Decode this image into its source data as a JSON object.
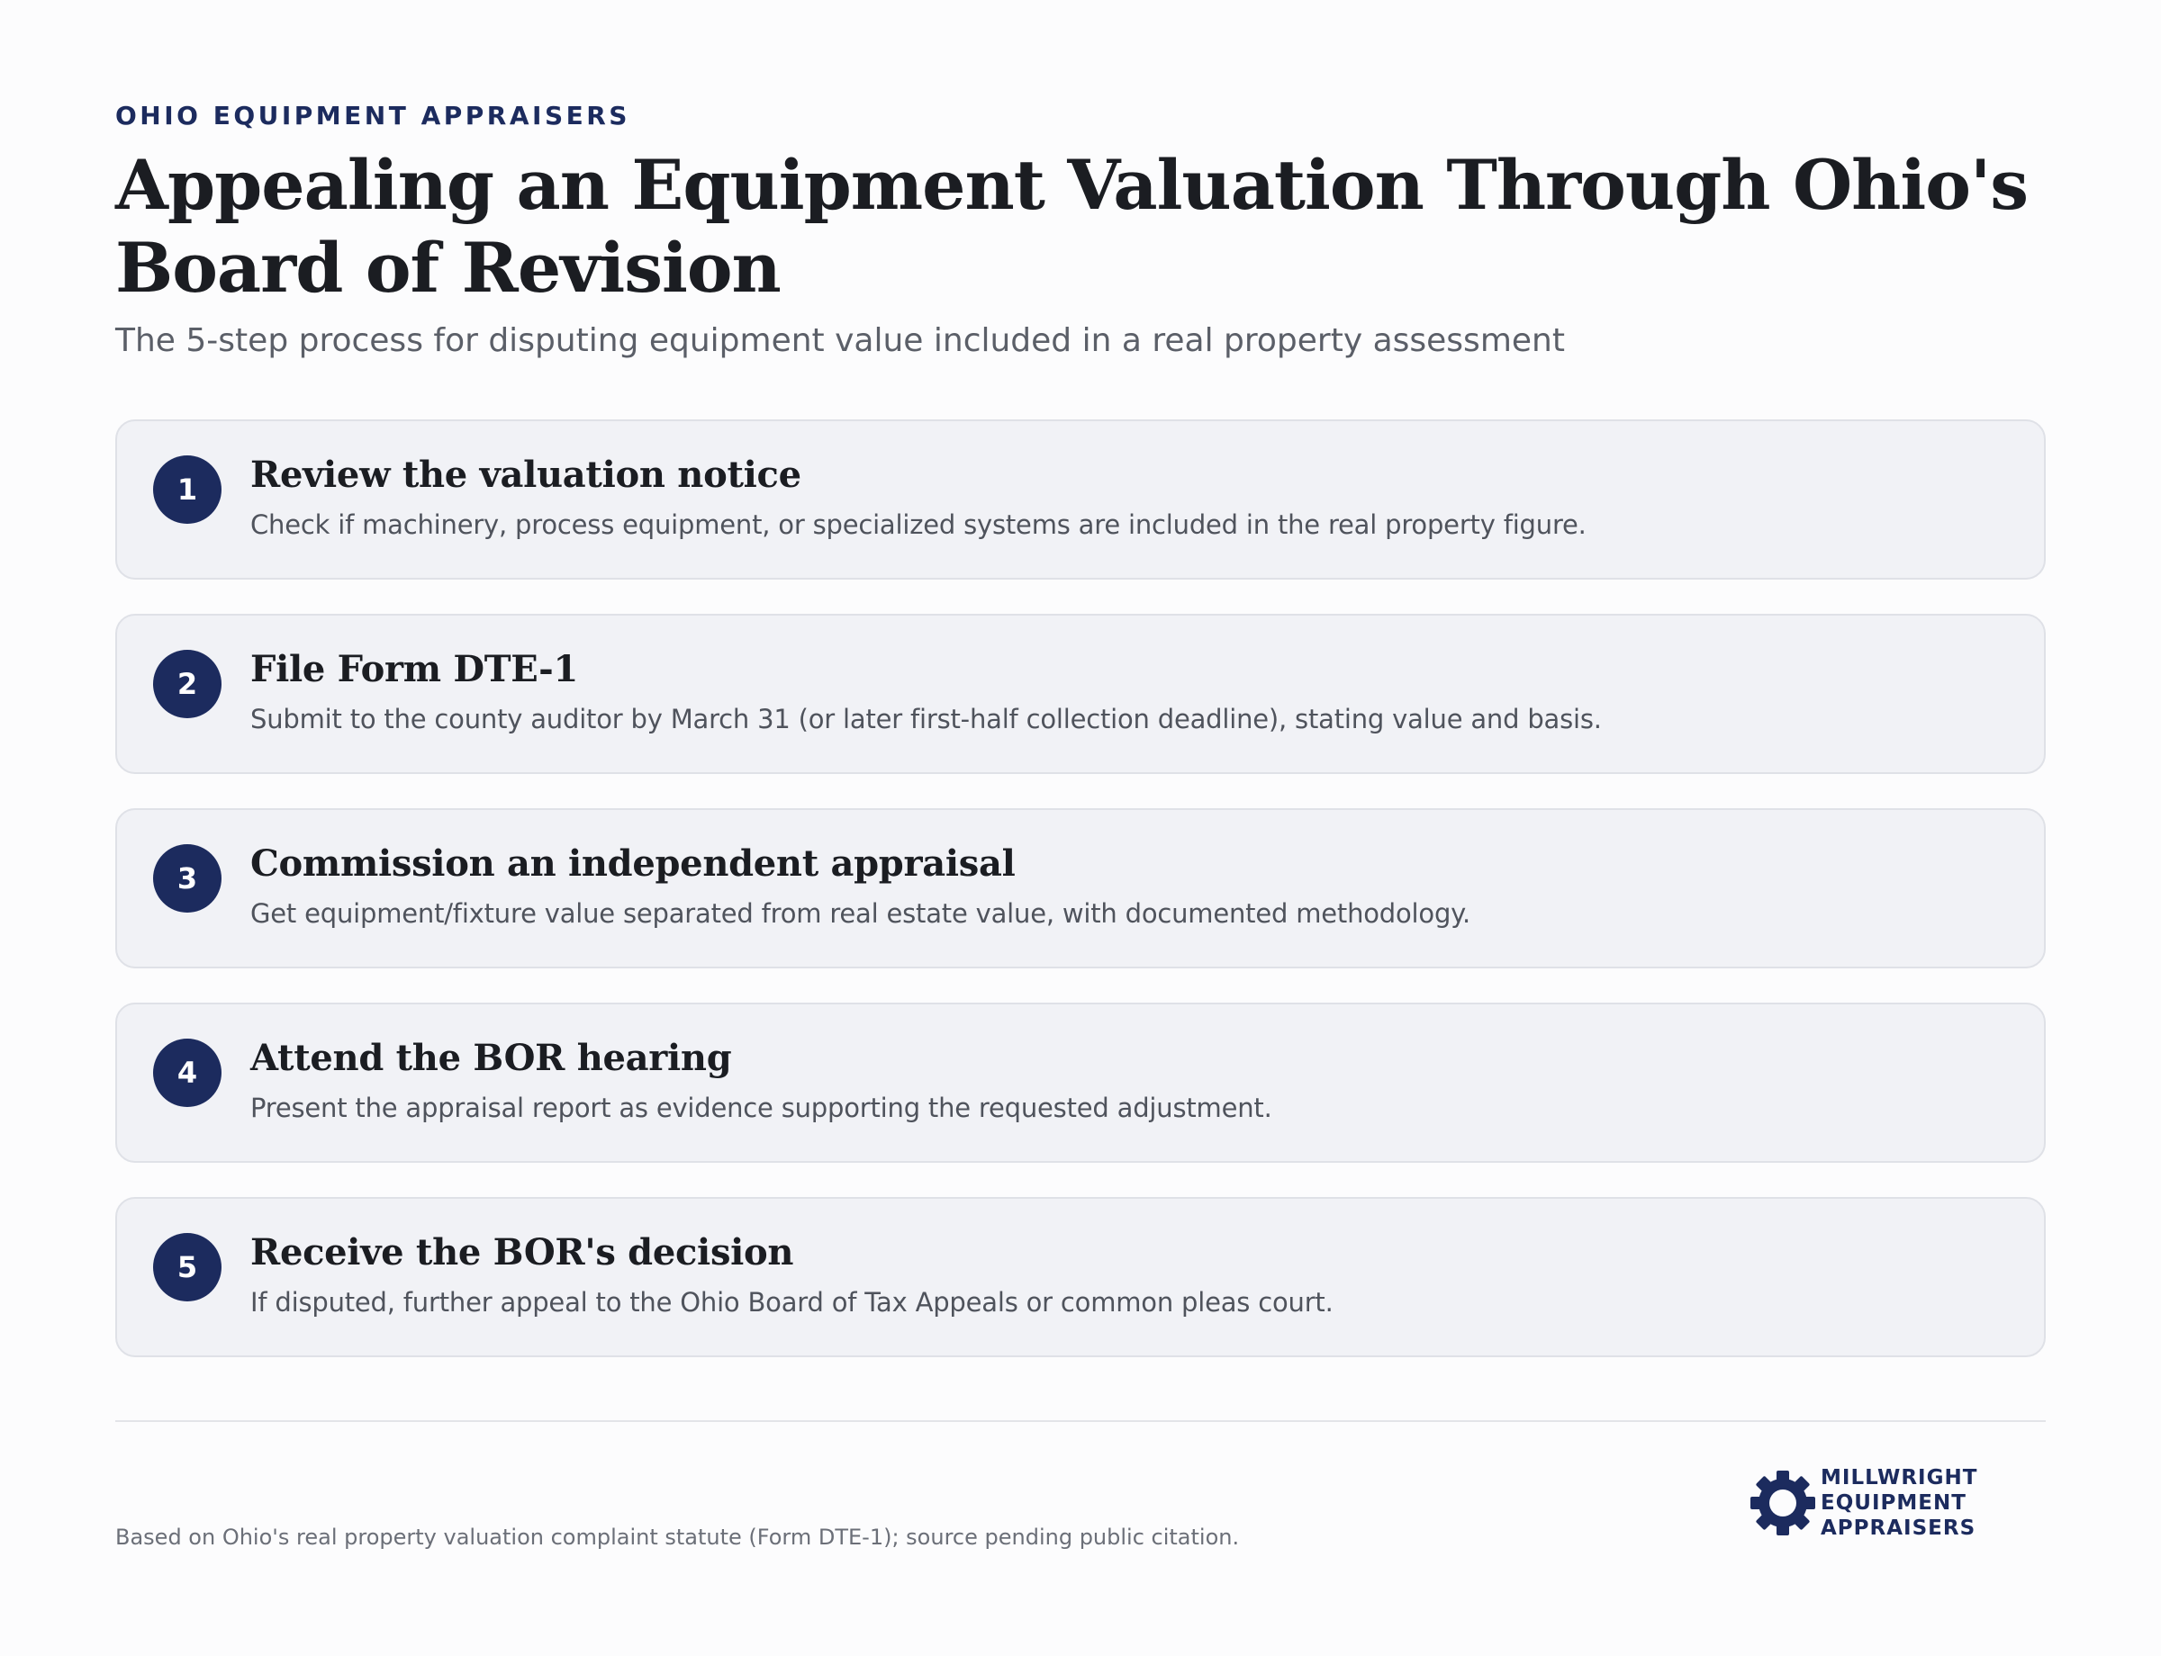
{
  "header": {
    "eyebrow": "OHIO EQUIPMENT APPRAISERS",
    "title": "Appealing an Equipment Valuation Through Ohio's Board of Revision",
    "subtitle": "The 5-step process for disputing equipment value included in a real property assessment"
  },
  "steps": [
    {
      "number": "1",
      "title": "Review the valuation notice",
      "description": "Check if machinery, process equipment, or specialized systems are included in the real property figure."
    },
    {
      "number": "2",
      "title": "File Form DTE-1",
      "description": "Submit to the county auditor by March 31 (or later first-half collection deadline), stating value and basis."
    },
    {
      "number": "3",
      "title": "Commission an independent appraisal",
      "description": "Get equipment/fixture value separated from real estate value, with documented methodology."
    },
    {
      "number": "4",
      "title": "Attend the BOR hearing",
      "description": "Present the appraisal report as evidence supporting the requested adjustment."
    },
    {
      "number": "5",
      "title": "Receive the BOR's decision",
      "description": "If disputed, further appeal to the Ohio Board of Tax Appeals or common pleas court."
    }
  ],
  "footer": {
    "note": "Based on Ohio's real property valuation complaint statute (Form DTE-1); source pending public citation."
  },
  "logo": {
    "icon": "gear-icon",
    "line1": "MILLWRIGHT",
    "line2": "EQUIPMENT",
    "line3": "APPRAISERS"
  },
  "colors": {
    "accent": "#1c2b5e",
    "card_background": "#f1f2f6",
    "card_border": "#dfe1e7",
    "text": "#1b1d22",
    "muted_text": "#4f535c"
  }
}
